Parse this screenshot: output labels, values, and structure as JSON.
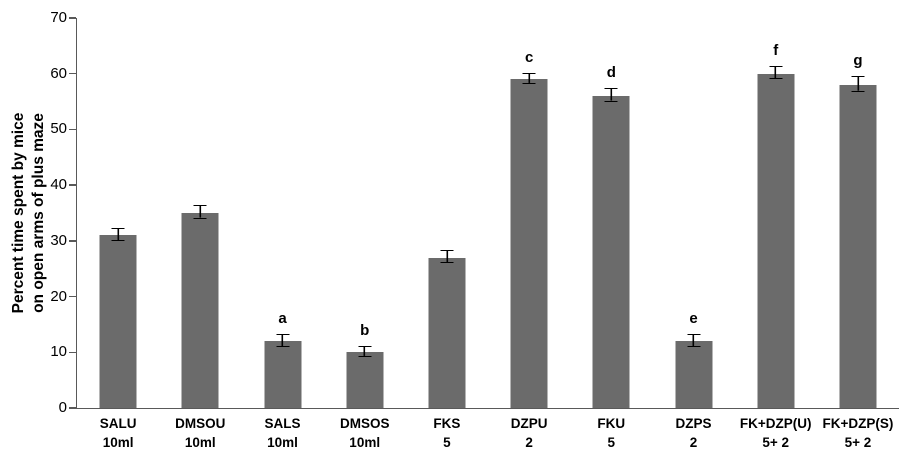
{
  "chart_data": {
    "type": "bar",
    "title": "",
    "xlabel": "",
    "ylabel": "Percent time spent by  mice\non open arms of plus maze",
    "ylim": [
      0,
      70
    ],
    "yticks": [
      0,
      10,
      20,
      30,
      40,
      50,
      60,
      70
    ],
    "grid": false,
    "legend": false,
    "bar_color": "#6b6b6b",
    "categories": [
      "SALU\n10ml",
      "DMSOU\n10ml",
      "SALS\n10ml",
      "DMSOS\n10ml",
      "FKS\n5",
      "DZPU\n2",
      "FKU\n5",
      "DZPS\n2",
      "FK+DZP(U)\n5+ 2",
      "FK+DZP(S)\n5+ 2"
    ],
    "values": [
      31,
      35,
      12,
      10,
      27,
      59,
      56,
      12,
      60,
      58
    ],
    "errors": [
      1,
      1,
      1,
      0.8,
      1,
      0.8,
      1,
      1,
      1,
      1.2
    ],
    "annotations": [
      "",
      "",
      "a",
      "b",
      "",
      "c",
      "d",
      "e",
      "f",
      "g"
    ]
  }
}
